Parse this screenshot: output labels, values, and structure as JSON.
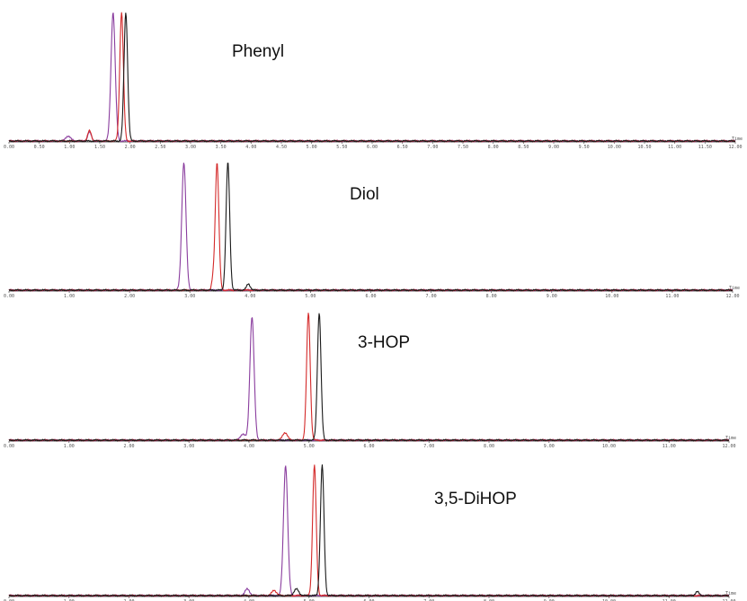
{
  "chart_data": [
    {
      "type": "line",
      "title": "Phenyl",
      "x_ticks": [
        "0.00",
        "0.50",
        "1.00",
        "1.50",
        "2.00",
        "2.50",
        "3.00",
        "3.50",
        "4.00",
        "4.50",
        "5.00",
        "5.50",
        "6.00",
        "6.50",
        "7.00",
        "7.50",
        "8.00",
        "8.50",
        "9.00",
        "9.50",
        "10.00",
        "10.50",
        "11.00",
        "11.50",
        "12.00"
      ],
      "x_axis_name": "Time",
      "xlim": [
        0,
        12
      ],
      "ylim": [
        0,
        1
      ],
      "series": [
        {
          "color": "#8a3d9e",
          "peaks": [
            {
              "x": 0.98,
              "height": 0.04,
              "width": 0.04
            },
            {
              "x": 1.33,
              "height": 0.07,
              "width": 0.03
            },
            {
              "x": 1.72,
              "height": 1.0,
              "width": 0.035
            }
          ]
        },
        {
          "color": "#d42a2a",
          "peaks": [
            {
              "x": 1.33,
              "height": 0.08,
              "width": 0.03
            },
            {
              "x": 1.86,
              "height": 1.0,
              "width": 0.03
            }
          ]
        },
        {
          "color": "#1a1a1a",
          "peaks": [
            {
              "x": 1.93,
              "height": 1.0,
              "width": 0.03
            }
          ]
        }
      ]
    },
    {
      "type": "line",
      "title": "Diol",
      "x_ticks": [
        "0.00",
        "1.00",
        "2.00",
        "3.00",
        "4.00",
        "5.00",
        "6.00",
        "7.00",
        "8.00",
        "9.00",
        "10.00",
        "11.00",
        "12.00"
      ],
      "x_axis_name": "Time",
      "xlim": [
        0,
        12
      ],
      "ylim": [
        0,
        1
      ],
      "series": [
        {
          "color": "#8a3d9e",
          "peaks": [
            {
              "x": 2.9,
              "height": 1.0,
              "width": 0.035
            }
          ]
        },
        {
          "color": "#d42a2a",
          "peaks": [
            {
              "x": 3.38,
              "height": 0.07,
              "width": 0.02
            },
            {
              "x": 3.45,
              "height": 1.0,
              "width": 0.03
            }
          ]
        },
        {
          "color": "#1a1a1a",
          "peaks": [
            {
              "x": 3.63,
              "height": 1.0,
              "width": 0.03
            },
            {
              "x": 3.97,
              "height": 0.05,
              "width": 0.03
            }
          ]
        }
      ]
    },
    {
      "type": "line",
      "title": "3-HOP",
      "x_ticks": [
        "0.00",
        "1.00",
        "2.00",
        "3.00",
        "4.00",
        "5.00",
        "6.00",
        "7.00",
        "8.00",
        "9.00",
        "10.00",
        "11.00",
        "12.00"
      ],
      "x_axis_name": "Time",
      "xlim": [
        0,
        12
      ],
      "ylim": [
        0,
        1
      ],
      "series": [
        {
          "color": "#8a3d9e",
          "peaks": [
            {
              "x": 3.9,
              "height": 0.05,
              "width": 0.04
            },
            {
              "x": 4.05,
              "height": 0.97,
              "width": 0.035
            }
          ]
        },
        {
          "color": "#d42a2a",
          "peaks": [
            {
              "x": 4.6,
              "height": 0.06,
              "width": 0.04
            },
            {
              "x": 4.99,
              "height": 1.0,
              "width": 0.03
            }
          ]
        },
        {
          "color": "#1a1a1a",
          "peaks": [
            {
              "x": 5.17,
              "height": 1.0,
              "width": 0.03
            }
          ]
        }
      ]
    },
    {
      "type": "line",
      "title": "3,5-DiHOP",
      "x_ticks": [
        "0.00",
        "1.00",
        "2.00",
        "3.00",
        "4.00",
        "5.00",
        "6.00",
        "7.00",
        "8.00",
        "9.00",
        "10.00",
        "11.00",
        "12.00"
      ],
      "x_axis_name": "Time",
      "xlim": [
        0,
        12
      ],
      "ylim": [
        0,
        1
      ],
      "series": [
        {
          "color": "#8a3d9e",
          "peaks": [
            {
              "x": 3.97,
              "height": 0.05,
              "width": 0.04
            },
            {
              "x": 4.61,
              "height": 1.0,
              "width": 0.035
            }
          ]
        },
        {
          "color": "#d42a2a",
          "peaks": [
            {
              "x": 4.42,
              "height": 0.04,
              "width": 0.04
            },
            {
              "x": 5.09,
              "height": 1.0,
              "width": 0.03
            }
          ]
        },
        {
          "color": "#1a1a1a",
          "peaks": [
            {
              "x": 4.79,
              "height": 0.05,
              "width": 0.04
            },
            {
              "x": 5.22,
              "height": 1.0,
              "width": 0.03
            },
            {
              "x": 11.47,
              "height": 0.03,
              "width": 0.03
            }
          ]
        }
      ]
    }
  ]
}
